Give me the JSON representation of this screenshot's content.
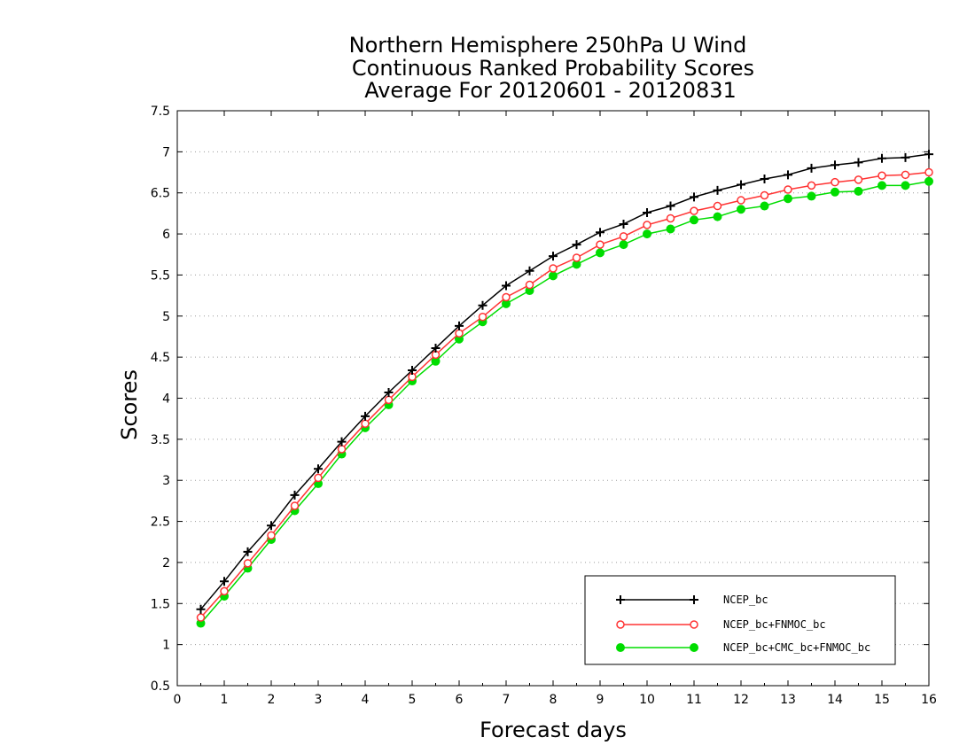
{
  "chart_data": {
    "type": "line",
    "title": [
      "Northern Hemisphere 250hPa U Wind",
      "Continuous Ranked Probability Scores",
      "Average For 20120601 - 20120831"
    ],
    "xlabel": "Forecast days",
    "ylabel": "Scores",
    "xlim": [
      0,
      16
    ],
    "ylim": [
      0.5,
      7.5
    ],
    "xticks": [
      "0",
      "1",
      "2",
      "3",
      "4",
      "5",
      "6",
      "7",
      "8",
      "9",
      "10",
      "11",
      "12",
      "13",
      "14",
      "15",
      "16"
    ],
    "yticks": [
      "0.5",
      "1",
      "1.5",
      "2",
      "2.5",
      "3",
      "3.5",
      "4",
      "4.5",
      "5",
      "5.5",
      "6",
      "6.5",
      "7",
      "7.5"
    ],
    "grid": "horizontal dotted",
    "legend_position": "bottom-right",
    "x": [
      0.5,
      1,
      1.5,
      2,
      2.5,
      3,
      3.5,
      4,
      4.5,
      5,
      5.5,
      6,
      6.5,
      7,
      7.5,
      8,
      8.5,
      9,
      9.5,
      10,
      10.5,
      11,
      11.5,
      12,
      12.5,
      13,
      13.5,
      14,
      14.5,
      15,
      15.5,
      16
    ],
    "series": [
      {
        "name": "NCEP_bc",
        "color": "#000000",
        "marker": "plus",
        "values": [
          1.43,
          1.77,
          2.13,
          2.45,
          2.82,
          3.14,
          3.47,
          3.78,
          4.07,
          4.34,
          4.61,
          4.88,
          5.13,
          5.37,
          5.55,
          5.73,
          5.87,
          6.02,
          6.12,
          6.26,
          6.34,
          6.45,
          6.53,
          6.6,
          6.67,
          6.72,
          6.8,
          6.84,
          6.87,
          6.92,
          6.93,
          6.97
        ]
      },
      {
        "name": "NCEP_bc+FNMOC_bc",
        "color": "#ff3333",
        "marker": "open-circle",
        "values": [
          1.33,
          1.65,
          1.99,
          2.33,
          2.69,
          3.03,
          3.38,
          3.69,
          3.98,
          4.26,
          4.53,
          4.79,
          4.99,
          5.23,
          5.38,
          5.58,
          5.71,
          5.87,
          5.97,
          6.11,
          6.19,
          6.28,
          6.34,
          6.41,
          6.47,
          6.54,
          6.59,
          6.63,
          6.66,
          6.71,
          6.72,
          6.75
        ]
      },
      {
        "name": "NCEP_bc+CMC_bc+FNMOC_bc",
        "color": "#00dd00",
        "marker": "filled-circle",
        "values": [
          1.26,
          1.59,
          1.93,
          2.28,
          2.63,
          2.96,
          3.32,
          3.64,
          3.92,
          4.21,
          4.45,
          4.72,
          4.93,
          5.15,
          5.31,
          5.49,
          5.63,
          5.77,
          5.87,
          6.0,
          6.06,
          6.17,
          6.21,
          6.3,
          6.34,
          6.43,
          6.46,
          6.51,
          6.52,
          6.59,
          6.59,
          6.64
        ]
      }
    ]
  }
}
